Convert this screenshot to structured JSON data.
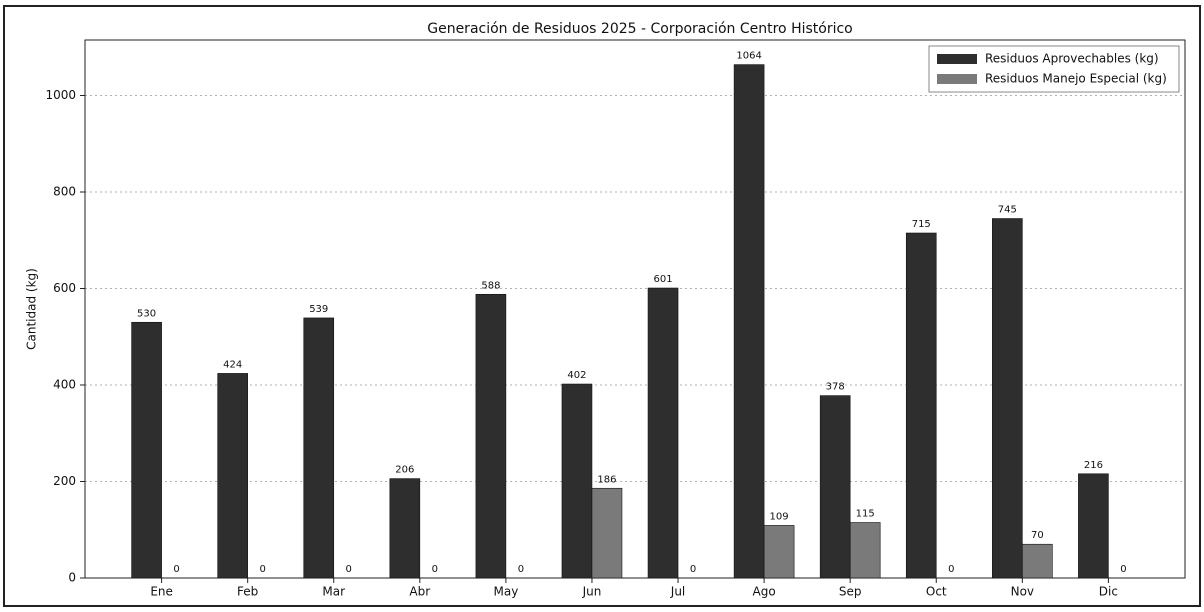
{
  "chart_data": {
    "type": "bar",
    "title": "Generación de Residuos 2025 - Corporación Centro Histórico",
    "y_label": "Cantidad (kg)",
    "categories": [
      "Ene",
      "Feb",
      "Mar",
      "Abr",
      "May",
      "Jun",
      "Jul",
      "Ago",
      "Sep",
      "Oct",
      "Nov",
      "Dic"
    ],
    "series": [
      {
        "name": "Residuos Aprovechables (kg)",
        "color": "#2e2e2e",
        "values": [
          530,
          424,
          539,
          206,
          588,
          402,
          601,
          1064,
          378,
          715,
          745,
          216
        ]
      },
      {
        "name": "Residuos Manejo Especial (kg)",
        "color": "#7a7a7a",
        "values": [
          0,
          0,
          0,
          0,
          0,
          186,
          0,
          109,
          115,
          0,
          70,
          0
        ]
      }
    ],
    "ylim": [
      0,
      1115
    ],
    "yticks": [
      0,
      200,
      400,
      600,
      800,
      1000
    ],
    "grid": true,
    "legend": "upper right"
  }
}
